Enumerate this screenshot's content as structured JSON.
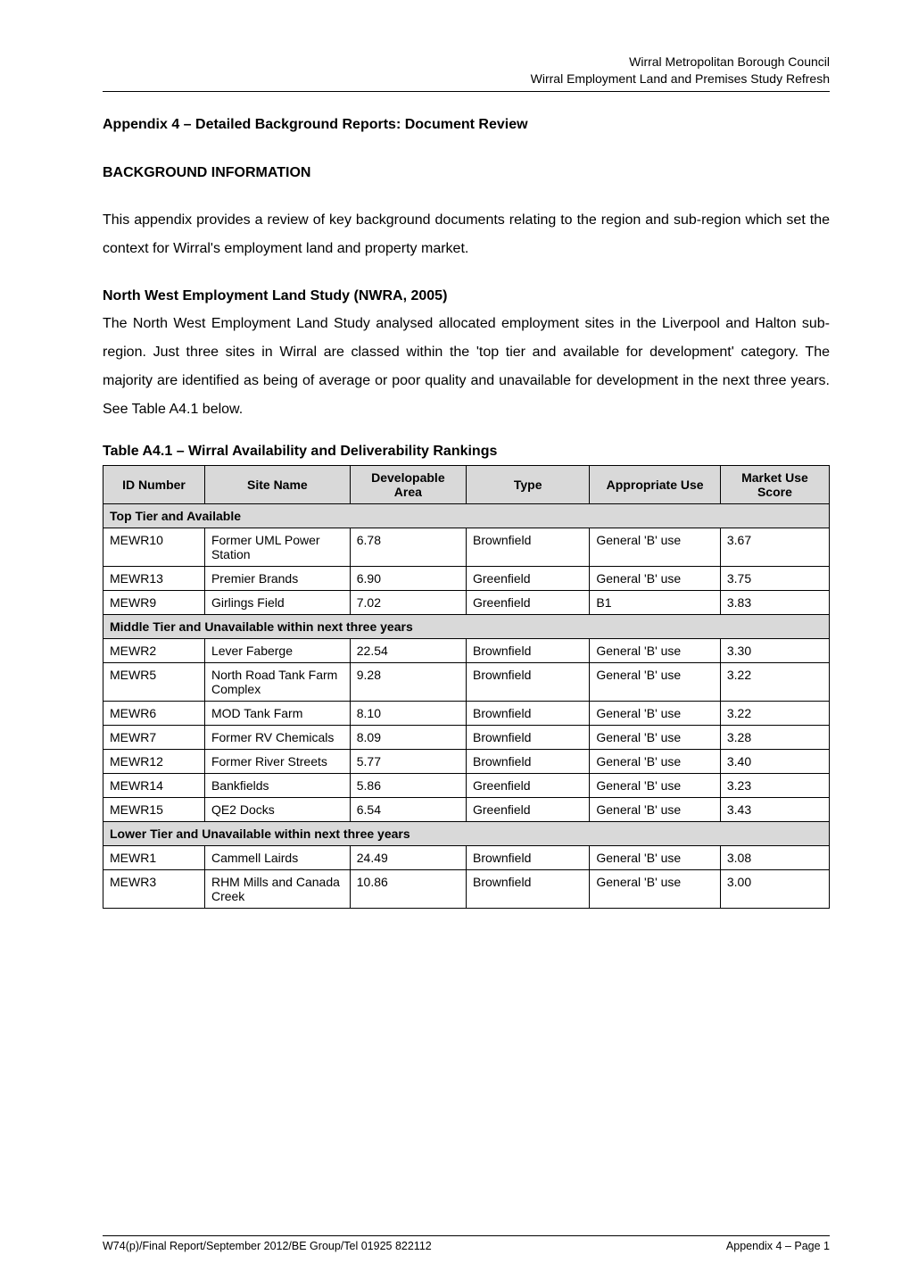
{
  "header": {
    "line1": "Wirral Metropolitan Borough Council",
    "line2": "Wirral Employment Land and Premises Study Refresh"
  },
  "appendix_title": "Appendix 4 – Detailed Background Reports: Document Review",
  "section_bg_title": "BACKGROUND INFORMATION",
  "intro_para": "This appendix provides a review of key background documents relating to the region and sub-region which set the context for Wirral's employment land and property market.",
  "nw_title": "North West Employment Land Study (NWRA, 2005)",
  "nw_para": "The North West Employment Land Study analysed allocated employment sites in the Liverpool and Halton sub-region.  Just three sites in Wirral are classed within the 'top tier and available for development' category.  The majority are identified as being of average or poor quality and unavailable for development in the next three years.  See Table A4.1 below.",
  "table_caption": "Table A4.1 – Wirral Availability and Deliverability Rankings",
  "table": {
    "columns": [
      "ID Number",
      "Site Name",
      "Developable Area",
      "Type",
      "Appropriate Use",
      "Market Use Score"
    ],
    "col_widths_pct": [
      14,
      20,
      16,
      17,
      18,
      15
    ],
    "header_bg": "#d9d9d9",
    "border_color": "#000000",
    "font_size": 14,
    "sections": [
      {
        "title": "Top Tier and Available",
        "rows": [
          [
            "MEWR10",
            "Former UML Power Station",
            "6.78",
            "Brownfield",
            "General 'B' use",
            "3.67"
          ],
          [
            "MEWR13",
            "Premier Brands",
            "6.90",
            "Greenfield",
            "General 'B' use",
            "3.75"
          ],
          [
            "MEWR9",
            "Girlings Field",
            "7.02",
            "Greenfield",
            "B1",
            "3.83"
          ]
        ]
      },
      {
        "title": "Middle Tier and Unavailable within next three years",
        "rows": [
          [
            "MEWR2",
            "Lever Faberge",
            "22.54",
            "Brownfield",
            "General 'B' use",
            "3.30"
          ],
          [
            "MEWR5",
            "North Road Tank Farm Complex",
            "9.28",
            "Brownfield",
            "General 'B' use",
            "3.22"
          ],
          [
            "MEWR6",
            "MOD Tank Farm",
            "8.10",
            "Brownfield",
            "General 'B' use",
            "3.22"
          ],
          [
            "MEWR7",
            "Former RV Chemicals",
            "8.09",
            "Brownfield",
            "General 'B' use",
            "3.28"
          ],
          [
            "MEWR12",
            "Former River Streets",
            "5.77",
            "Brownfield",
            "General 'B' use",
            "3.40"
          ],
          [
            "MEWR14",
            "Bankfields",
            "5.86",
            "Greenfield",
            "General 'B' use",
            "3.23"
          ],
          [
            "MEWR15",
            "QE2 Docks",
            "6.54",
            "Greenfield",
            "General 'B' use",
            "3.43"
          ]
        ]
      },
      {
        "title": "Lower Tier and Unavailable within next three years",
        "rows": [
          [
            "MEWR1",
            "Cammell Lairds",
            "24.49",
            "Brownfield",
            "General 'B' use",
            "3.08"
          ],
          [
            "MEWR3",
            "RHM Mills and Canada Creek",
            "10.86",
            "Brownfield",
            "General 'B' use",
            "3.00"
          ]
        ]
      }
    ]
  },
  "footer": {
    "left": "W74(p)/Final Report/September 2012/BE Group/Tel 01925 822112",
    "right": "Appendix 4 – Page 1"
  },
  "colors": {
    "text": "#000000",
    "background": "#ffffff",
    "table_header_bg": "#d9d9d9",
    "table_border": "#000000"
  },
  "typography": {
    "body_font": "Arial, Helvetica, sans-serif",
    "body_size_pt": 12,
    "header_size_pt": 10,
    "table_size_pt": 10,
    "footer_size_pt": 9
  }
}
